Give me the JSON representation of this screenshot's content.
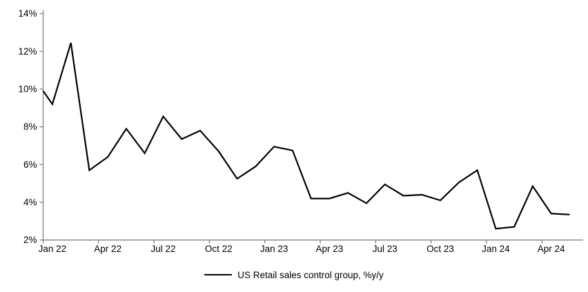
{
  "chart_data": {
    "type": "line",
    "title": "",
    "legend_label": "US Retail sales control group, %y/y",
    "legend_position": "bottom-center",
    "grid": false,
    "ylim": [
      2,
      14
    ],
    "ytick_step": 2,
    "ytick_labels": [
      "2%",
      "4%",
      "6%",
      "8%",
      "10%",
      "12%",
      "14%"
    ],
    "xtick_labels": [
      "Jan 22",
      "Apr 22",
      "Jul 22",
      "Oct 22",
      "Jan 23",
      "Apr 23",
      "Jul 23",
      "Oct 23",
      "Jan 24",
      "Apr 24"
    ],
    "x_tick_interval_months": 3,
    "axis_edge_entry_value": 9.9,
    "series": [
      {
        "name": "US Retail sales control group, %y/y",
        "months": [
          "Jan 22",
          "Feb 22",
          "Mar 22",
          "Apr 22",
          "May 22",
          "Jun 22",
          "Jul 22",
          "Aug 22",
          "Sep 22",
          "Oct 22",
          "Nov 22",
          "Dec 22",
          "Jan 23",
          "Feb 23",
          "Mar 23",
          "Apr 23",
          "May 23",
          "Jun 23",
          "Jul 23",
          "Aug 23",
          "Sep 23",
          "Oct 23",
          "Nov 23",
          "Dec 23",
          "Jan 24",
          "Feb 24",
          "Mar 24",
          "Apr 24",
          "May 24"
        ],
        "values": [
          9.2,
          12.45,
          5.7,
          6.4,
          7.9,
          6.6,
          8.55,
          7.35,
          7.8,
          6.7,
          5.25,
          5.9,
          6.95,
          6.75,
          4.2,
          4.2,
          4.5,
          3.95,
          4.95,
          4.35,
          4.4,
          4.1,
          5.05,
          5.7,
          2.6,
          2.7,
          4.85,
          3.4,
          3.35
        ]
      }
    ],
    "colors": {
      "line": "#000000",
      "axis": "#808080",
      "text": "#000000",
      "background": "#ffffff"
    }
  }
}
